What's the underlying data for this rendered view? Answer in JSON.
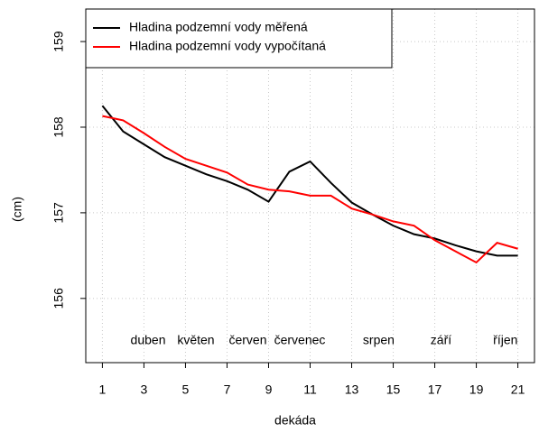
{
  "chart_data": {
    "type": "line",
    "x_label": "dekáda",
    "y_label": "(cm)",
    "x": [
      1,
      2,
      3,
      4,
      5,
      6,
      7,
      8,
      9,
      10,
      11,
      12,
      13,
      14,
      15,
      16,
      17,
      18,
      19,
      20,
      21
    ],
    "series": [
      {
        "name": "Hladina podzemní vody měřená",
        "color": "#000000",
        "values": [
          158.25,
          157.95,
          157.8,
          157.65,
          157.55,
          157.45,
          157.37,
          157.27,
          157.13,
          157.48,
          157.6,
          157.35,
          157.12,
          156.98,
          156.85,
          156.75,
          156.7,
          156.62,
          156.55,
          156.5,
          156.5
        ]
      },
      {
        "name": "Hladina podzemní vody vypočítaná",
        "color": "#ff0000",
        "values": [
          158.13,
          158.08,
          157.93,
          157.77,
          157.63,
          157.55,
          157.47,
          157.33,
          157.27,
          157.25,
          157.2,
          157.2,
          157.05,
          156.98,
          156.9,
          156.85,
          156.68,
          156.55,
          156.42,
          156.65,
          156.58
        ]
      }
    ],
    "annotations": [
      "duben",
      "květen",
      "červen",
      "červenec",
      "srpen",
      "září",
      "říjen"
    ],
    "xlim": [
      0.2,
      21.8
    ],
    "ylim": [
      155.25,
      159.38
    ],
    "xticks": [
      1,
      3,
      5,
      7,
      9,
      11,
      13,
      15,
      17,
      19,
      21
    ],
    "yticks": [
      156,
      157,
      158,
      159
    ],
    "grid": true,
    "legend": "top-left"
  }
}
